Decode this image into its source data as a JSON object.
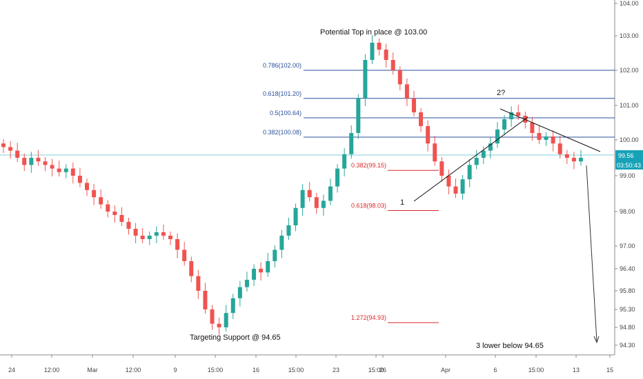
{
  "chart_data": {
    "type": "candlestick",
    "colors": {
      "up": "#26a69a",
      "down": "#ef5350",
      "fib_blue": "#2a4f9c",
      "fib_red": "#d8282c",
      "price_line": "#7fd0d9",
      "badge": "#17a2b8"
    },
    "y_axis": {
      "ticks": [
        "104.00",
        "103.00",
        "102.00",
        "101.00",
        "100.00",
        "99.00",
        "98.00",
        "97.00",
        "96.40",
        "95.80",
        "95.30",
        "94.80",
        "94.30"
      ]
    },
    "x_axis": {
      "ticks": [
        "24",
        "12:00",
        "Mar",
        "12:00",
        "9",
        "15:00",
        "16",
        "15:00",
        "23",
        "15:00",
        "26",
        "Apr",
        "6",
        "15:00",
        "13",
        "15"
      ]
    },
    "current_price": "99.56",
    "countdown": "03:50:43",
    "fib_levels_blue": [
      {
        "label": "0.786(102.00)",
        "value": 102.0
      },
      {
        "label": "0.618(101.20)",
        "value": 101.2
      },
      {
        "label": "0.5(100.64)",
        "value": 100.64
      },
      {
        "label": "0.382(100.08)",
        "value": 100.08
      }
    ],
    "fib_levels_red": [
      {
        "label": "0.382(99.15)",
        "value": 99.15
      },
      {
        "label": "0.618(98.03)",
        "value": 98.03
      },
      {
        "label": "1.272(94.93)",
        "value": 94.93
      }
    ],
    "annotations": [
      {
        "text": "Potential Top in place @ 103.00"
      },
      {
        "text": "2?"
      },
      {
        "text": "1"
      },
      {
        "text": "Targeting Support @ 94.65"
      },
      {
        "text": "3 lower below 94.65"
      }
    ],
    "series_closes": [
      99.8,
      99.7,
      99.5,
      99.3,
      99.5,
      99.4,
      99.3,
      99.2,
      99.1,
      99.2,
      99.0,
      98.8,
      98.6,
      98.4,
      98.2,
      98.0,
      97.9,
      97.7,
      97.5,
      97.3,
      97.2,
      97.3,
      97.4,
      97.3,
      97.2,
      96.9,
      96.6,
      96.2,
      95.8,
      95.3,
      94.9,
      94.8,
      95.2,
      95.6,
      95.9,
      96.1,
      96.4,
      96.3,
      96.6,
      96.9,
      97.3,
      97.6,
      98.1,
      98.6,
      98.4,
      98.1,
      98.3,
      98.7,
      99.2,
      99.6,
      100.2,
      101.2,
      102.3,
      102.8,
      102.6,
      102.3,
      102.0,
      101.6,
      101.2,
      100.8,
      100.4,
      99.9,
      99.4,
      99.0,
      98.7,
      98.5,
      98.9,
      99.3,
      99.5,
      99.7,
      99.9,
      100.3,
      100.6,
      100.8,
      100.7,
      100.5,
      100.2,
      100.0,
      100.1,
      99.9,
      99.6,
      99.5,
      99.4,
      99.5
    ]
  }
}
